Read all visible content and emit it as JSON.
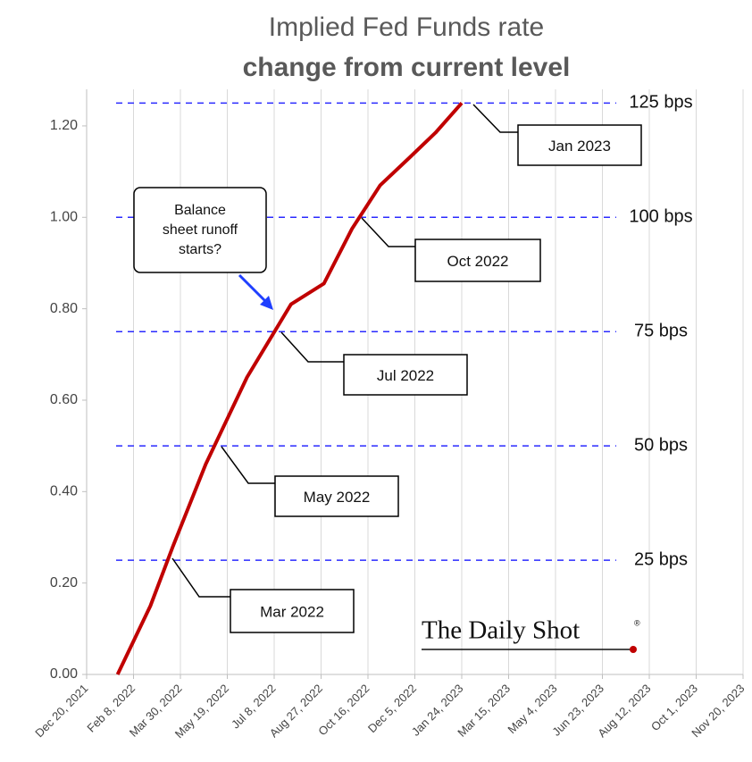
{
  "chart_data": {
    "type": "line",
    "title": "Implied Fed Funds rate",
    "subtitle": "change from current level",
    "x": [
      "2022-01-22",
      "2022-02-26",
      "2022-03-22",
      "2022-04-26",
      "2022-06-09",
      "2022-07-26",
      "2022-08-30",
      "2022-09-29",
      "2022-10-29",
      "2022-11-29",
      "2022-12-27",
      "2023-01-24"
    ],
    "values": [
      0.0,
      0.15,
      0.28,
      0.46,
      0.65,
      0.81,
      0.855,
      0.975,
      1.07,
      1.13,
      1.185,
      1.25
    ],
    "color": "#c00000",
    "xlim": [
      "2021-12-20",
      "2023-11-20"
    ],
    "xticks": [
      {
        "value": "2021-12-20",
        "label": "Dec 20, 2021"
      },
      {
        "value": "2022-02-08",
        "label": "Feb 8, 2022"
      },
      {
        "value": "2022-03-30",
        "label": "Mar 30, 2022"
      },
      {
        "value": "2022-05-19",
        "label": "May 19, 2022"
      },
      {
        "value": "2022-07-08",
        "label": "Jul 8, 2022"
      },
      {
        "value": "2022-08-27",
        "label": "Aug 27, 2022"
      },
      {
        "value": "2022-10-16",
        "label": "Oct 16, 2022"
      },
      {
        "value": "2022-12-05",
        "label": "Dec 5, 2022"
      },
      {
        "value": "2023-01-24",
        "label": "Jan 24, 2023"
      },
      {
        "value": "2023-03-15",
        "label": "Mar 15, 2023"
      },
      {
        "value": "2023-05-04",
        "label": "May 4, 2023"
      },
      {
        "value": "2023-06-23",
        "label": "Jun 23, 2023"
      },
      {
        "value": "2023-08-12",
        "label": "Aug 12, 2023"
      },
      {
        "value": "2023-10-01",
        "label": "Oct 1, 2023"
      },
      {
        "value": "2023-11-20",
        "label": "Nov 20, 2023"
      }
    ],
    "ylim": [
      0,
      1.28
    ],
    "yticks": [
      {
        "value": 0,
        "label": "0.00"
      },
      {
        "value": 0.2,
        "label": "0.20"
      },
      {
        "value": 0.4,
        "label": "0.40"
      },
      {
        "value": 0.6,
        "label": "0.60"
      },
      {
        "value": 0.8,
        "label": "0.80"
      },
      {
        "value": 1.0,
        "label": "1.00"
      },
      {
        "value": 1.2,
        "label": "1.20"
      }
    ],
    "grid": true,
    "hlines": [
      {
        "value": 0.25,
        "label": "25 bps"
      },
      {
        "value": 0.5,
        "label": "50 bps"
      },
      {
        "value": 0.75,
        "label": "75 bps"
      },
      {
        "value": 1.0,
        "label": "100 bps"
      },
      {
        "value": 1.25,
        "label": "125 bps"
      }
    ],
    "annotations": [
      "Mar 2022",
      "May 2022",
      "Jul 2022",
      "Oct 2022",
      "Jan 2023"
    ],
    "callout": [
      "Balance",
      "sheet runoff",
      "starts?"
    ],
    "logo": "The Daily Shot"
  }
}
